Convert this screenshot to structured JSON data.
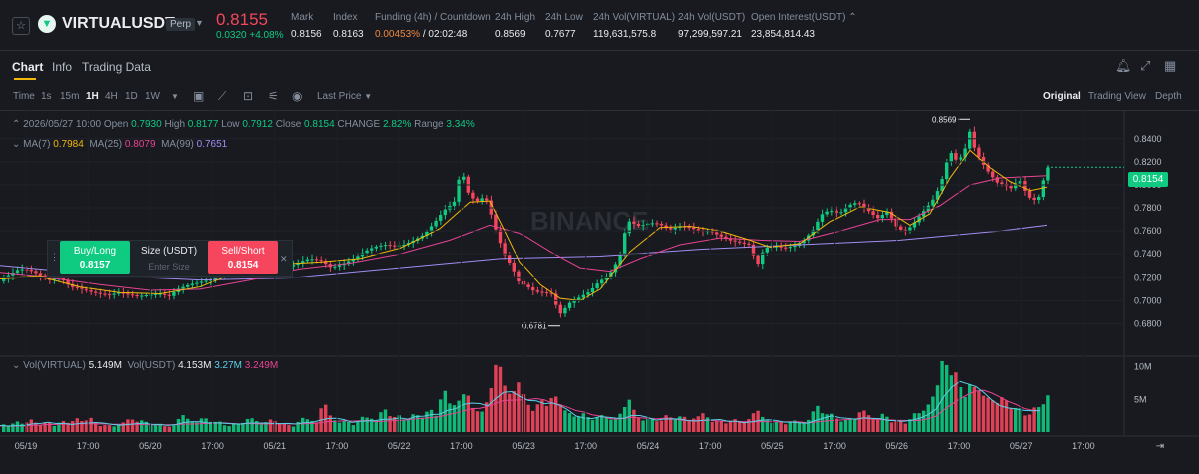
{
  "ticker": {
    "symbol": "VIRTUALUSDT",
    "perp_label": "Perp",
    "last_price": "0.8155",
    "change_abs": "0.0320",
    "change_pct": "+4.08%",
    "stats": [
      {
        "label": "Mark",
        "value": "0.8156",
        "color": "#eaecef"
      },
      {
        "label": "Index",
        "value": "0.8163",
        "color": "#eaecef"
      },
      {
        "label": "Funding (4h) / Countdown",
        "value": "0.00453%",
        "value2": "/ 02:02:48",
        "color": "#f0883e"
      },
      {
        "label": "24h High",
        "value": "0.8569",
        "color": "#eaecef"
      },
      {
        "label": "24h Low",
        "value": "0.7677",
        "color": "#eaecef"
      },
      {
        "label": "24h Vol(VIRTUAL)",
        "value": "119,631,575.8",
        "color": "#eaecef"
      },
      {
        "label": "24h Vol(USDT)",
        "value": "97,299,597.21",
        "color": "#eaecef"
      },
      {
        "label": "Open Interest(USDT)",
        "value": "23,854,814.43",
        "color": "#eaecef"
      }
    ]
  },
  "tabs": [
    "Chart",
    "Info",
    "Trading Data"
  ],
  "toolbar": {
    "time_label": "Time",
    "intervals": [
      "1s",
      "15m",
      "1H",
      "4H",
      "1D",
      "1W"
    ],
    "active_interval": "1H",
    "price_type": "Last Price",
    "views": [
      "Original",
      "Trading View",
      "Depth"
    ],
    "active_view": "Original"
  },
  "ohlc": {
    "date": "2026/05/27 10:00",
    "open_label": "Open",
    "open": "0.7930",
    "high_label": "High",
    "high": "0.8177",
    "low_label": "Low",
    "low": "0.7912",
    "close_label": "Close",
    "close": "0.8154",
    "change_label": "CHANGE",
    "change": "2.82%",
    "range_label": "Range",
    "range": "3.34%"
  },
  "ma": {
    "ma7_label": "MA(7)",
    "ma7": "0.7984",
    "ma25_label": "MA(25)",
    "ma25": "0.8079",
    "ma99_label": "MA(99)",
    "ma99": "0.7651"
  },
  "volume_info": {
    "vol_virtual_label": "Vol(VIRTUAL)",
    "vol_virtual": "5.149M",
    "vol_usdt_label": "Vol(USDT)",
    "vol_usdt": "4.153M",
    "vol_ma1": "3.27M",
    "vol_ma2": "3.249M"
  },
  "order": {
    "buy_label": "Buy/Long",
    "buy_price": "0.8157",
    "size_label": "Size (USDT)",
    "size_placeholder": "Enter Size",
    "sell_label": "Sell/Short",
    "sell_price": "0.8154"
  },
  "chart": {
    "current_price_tag": "0.8154",
    "high_marker": "0.8569",
    "low_marker": "0.6781",
    "watermark": "BINANCE"
  },
  "chart_data": {
    "type": "candlestick",
    "interval": "1H",
    "y_ticks": [
      "0.8400",
      "0.8200",
      "0.8000",
      "0.7800",
      "0.7600",
      "0.7400",
      "0.7200",
      "0.7000",
      "0.6800"
    ],
    "ylim": [
      0.664,
      0.858
    ],
    "volume_ticks": [
      "10M",
      "5M"
    ],
    "x_ticks": [
      "05/19",
      "17:00",
      "05/20",
      "17:00",
      "05/21",
      "17:00",
      "05/22",
      "17:00",
      "05/23",
      "17:00",
      "05/24",
      "17:00",
      "05/25",
      "17:00",
      "05/26",
      "17:00",
      "05/27",
      "17:00"
    ],
    "series": [
      {
        "name": "MA(7)",
        "color": "#f0b90b"
      },
      {
        "name": "MA(25)",
        "color": "#e84393"
      },
      {
        "name": "MA(99)",
        "color": "#a38cf2"
      }
    ],
    "price_path": [
      [
        0,
        0.717
      ],
      [
        10,
        0.722
      ],
      [
        20,
        0.727
      ],
      [
        30,
        0.726
      ],
      [
        40,
        0.722
      ],
      [
        50,
        0.718
      ],
      [
        60,
        0.721
      ],
      [
        66,
        0.716
      ],
      [
        72,
        0.712
      ],
      [
        80,
        0.711
      ],
      [
        90,
        0.708
      ],
      [
        100,
        0.706
      ],
      [
        110,
        0.705
      ],
      [
        120,
        0.707
      ],
      [
        130,
        0.705
      ],
      [
        140,
        0.704
      ],
      [
        150,
        0.705
      ],
      [
        160,
        0.706
      ],
      [
        170,
        0.704
      ],
      [
        178,
        0.71
      ],
      [
        190,
        0.714
      ],
      [
        200,
        0.716
      ],
      [
        210,
        0.718
      ],
      [
        220,
        0.722
      ],
      [
        230,
        0.726
      ],
      [
        240,
        0.73
      ],
      [
        255,
        0.733
      ],
      [
        265,
        0.734
      ],
      [
        275,
        0.733
      ],
      [
        285,
        0.731
      ],
      [
        290,
        0.729
      ],
      [
        300,
        0.733
      ],
      [
        310,
        0.736
      ],
      [
        322,
        0.734
      ],
      [
        332,
        0.728
      ],
      [
        345,
        0.732
      ],
      [
        355,
        0.736
      ],
      [
        365,
        0.742
      ],
      [
        375,
        0.746
      ],
      [
        385,
        0.748
      ],
      [
        395,
        0.747
      ],
      [
        405,
        0.748
      ],
      [
        415,
        0.752
      ],
      [
        425,
        0.757
      ],
      [
        435,
        0.767
      ],
      [
        445,
        0.778
      ],
      [
        455,
        0.785
      ],
      [
        462,
        0.814
      ],
      [
        470,
        0.79
      ],
      [
        478,
        0.786
      ],
      [
        486,
        0.79
      ],
      [
        492,
        0.774
      ],
      [
        498,
        0.757
      ],
      [
        505,
        0.74
      ],
      [
        512,
        0.73
      ],
      [
        520,
        0.716
      ],
      [
        528,
        0.712
      ],
      [
        535,
        0.708
      ],
      [
        545,
        0.707
      ],
      [
        552,
        0.706
      ],
      [
        560,
        0.688
      ],
      [
        570,
        0.698
      ],
      [
        580,
        0.703
      ],
      [
        590,
        0.708
      ],
      [
        600,
        0.717
      ],
      [
        610,
        0.722
      ],
      [
        620,
        0.737
      ],
      [
        628,
        0.769
      ],
      [
        640,
        0.764
      ],
      [
        650,
        0.767
      ],
      [
        660,
        0.766
      ],
      [
        670,
        0.761
      ],
      [
        680,
        0.764
      ],
      [
        690,
        0.763
      ],
      [
        700,
        0.76
      ],
      [
        710,
        0.76
      ],
      [
        720,
        0.756
      ],
      [
        730,
        0.752
      ],
      [
        740,
        0.75
      ],
      [
        750,
        0.748
      ],
      [
        758,
        0.73
      ],
      [
        765,
        0.745
      ],
      [
        775,
        0.747
      ],
      [
        785,
        0.745
      ],
      [
        795,
        0.747
      ],
      [
        805,
        0.752
      ],
      [
        815,
        0.762
      ],
      [
        822,
        0.774
      ],
      [
        830,
        0.778
      ],
      [
        840,
        0.775
      ],
      [
        848,
        0.782
      ],
      [
        858,
        0.785
      ],
      [
        868,
        0.778
      ],
      [
        878,
        0.771
      ],
      [
        888,
        0.777
      ],
      [
        898,
        0.762
      ],
      [
        905,
        0.76
      ],
      [
        912,
        0.764
      ],
      [
        920,
        0.773
      ],
      [
        928,
        0.781
      ],
      [
        936,
        0.79
      ],
      [
        944,
        0.808
      ],
      [
        950,
        0.83
      ],
      [
        958,
        0.82
      ],
      [
        965,
        0.829
      ],
      [
        970,
        0.847
      ],
      [
        975,
        0.832
      ],
      [
        982,
        0.82
      ],
      [
        990,
        0.81
      ],
      [
        998,
        0.802
      ],
      [
        1005,
        0.8
      ],
      [
        1012,
        0.797
      ],
      [
        1020,
        0.805
      ],
      [
        1027,
        0.792
      ],
      [
        1033,
        0.786
      ],
      [
        1040,
        0.79
      ],
      [
        1047,
        0.815
      ]
    ],
    "ma7": [
      [
        0,
        0.719
      ],
      [
        40,
        0.721
      ],
      [
        80,
        0.712
      ],
      [
        120,
        0.707
      ],
      [
        160,
        0.706
      ],
      [
        200,
        0.712
      ],
      [
        240,
        0.726
      ],
      [
        280,
        0.731
      ],
      [
        320,
        0.733
      ],
      [
        360,
        0.736
      ],
      [
        400,
        0.745
      ],
      [
        440,
        0.762
      ],
      [
        470,
        0.785
      ],
      [
        490,
        0.786
      ],
      [
        505,
        0.76
      ],
      [
        520,
        0.733
      ],
      [
        540,
        0.714
      ],
      [
        560,
        0.702
      ],
      [
        580,
        0.7
      ],
      [
        600,
        0.71
      ],
      [
        630,
        0.742
      ],
      [
        660,
        0.763
      ],
      [
        690,
        0.764
      ],
      [
        720,
        0.76
      ],
      [
        750,
        0.752
      ],
      [
        770,
        0.746
      ],
      [
        800,
        0.749
      ],
      [
        830,
        0.768
      ],
      [
        860,
        0.781
      ],
      [
        890,
        0.776
      ],
      [
        910,
        0.765
      ],
      [
        930,
        0.775
      ],
      [
        950,
        0.806
      ],
      [
        970,
        0.83
      ],
      [
        990,
        0.815
      ],
      [
        1010,
        0.803
      ],
      [
        1030,
        0.795
      ],
      [
        1047,
        0.798
      ]
    ],
    "ma25": [
      [
        0,
        0.724
      ],
      [
        50,
        0.72
      ],
      [
        100,
        0.714
      ],
      [
        150,
        0.709
      ],
      [
        200,
        0.71
      ],
      [
        250,
        0.718
      ],
      [
        300,
        0.727
      ],
      [
        350,
        0.732
      ],
      [
        400,
        0.74
      ],
      [
        450,
        0.752
      ],
      [
        490,
        0.765
      ],
      [
        520,
        0.758
      ],
      [
        550,
        0.742
      ],
      [
        580,
        0.728
      ],
      [
        610,
        0.725
      ],
      [
        640,
        0.736
      ],
      [
        680,
        0.748
      ],
      [
        720,
        0.754
      ],
      [
        760,
        0.752
      ],
      [
        800,
        0.751
      ],
      [
        840,
        0.76
      ],
      [
        880,
        0.77
      ],
      [
        910,
        0.77
      ],
      [
        940,
        0.782
      ],
      [
        970,
        0.8
      ],
      [
        1000,
        0.806
      ],
      [
        1047,
        0.808
      ]
    ],
    "ma99": [
      [
        0,
        0.73
      ],
      [
        100,
        0.722
      ],
      [
        200,
        0.718
      ],
      [
        300,
        0.72
      ],
      [
        400,
        0.728
      ],
      [
        500,
        0.736
      ],
      [
        600,
        0.738
      ],
      [
        700,
        0.744
      ],
      [
        800,
        0.748
      ],
      [
        900,
        0.752
      ],
      [
        1000,
        0.76
      ],
      [
        1047,
        0.765
      ]
    ],
    "volume_M": [
      [
        0,
        1.1
      ],
      [
        8,
        0.8
      ],
      [
        15,
        1.4
      ],
      [
        22,
        1.0
      ],
      [
        30,
        1.9
      ],
      [
        38,
        1.2
      ],
      [
        45,
        2.2
      ],
      [
        52,
        0.9
      ],
      [
        60,
        1.6
      ],
      [
        68,
        1.1
      ],
      [
        75,
        1.8
      ],
      [
        82,
        1.3
      ],
      [
        90,
        2.1
      ],
      [
        98,
        1.0
      ],
      [
        105,
        1.5
      ],
      [
        112,
        0.9
      ],
      [
        120,
        1.2
      ],
      [
        128,
        1.8
      ],
      [
        135,
        1.3
      ],
      [
        142,
        1.6
      ],
      [
        150,
        0.9
      ],
      [
        158,
        1.4
      ],
      [
        165,
        1.0
      ],
      [
        172,
        1.1
      ],
      [
        180,
        2.6
      ],
      [
        188,
        1.5
      ],
      [
        195,
        1.2
      ],
      [
        202,
        2.0
      ],
      [
        210,
        1.3
      ],
      [
        218,
        1.7
      ],
      [
        225,
        1.0
      ],
      [
        232,
        1.6
      ],
      [
        240,
        1.2
      ],
      [
        248,
        2.0
      ],
      [
        255,
        1.4
      ],
      [
        262,
        1.1
      ],
      [
        270,
        1.8
      ],
      [
        278,
        1.3
      ],
      [
        285,
        1.5
      ],
      [
        292,
        1.0
      ],
      [
        300,
        2.2
      ],
      [
        308,
        1.6
      ],
      [
        315,
        1.2
      ],
      [
        322,
        4.1
      ],
      [
        330,
        1.8
      ],
      [
        338,
        1.4
      ],
      [
        345,
        2.1
      ],
      [
        352,
        1.3
      ],
      [
        360,
        2.4
      ],
      [
        368,
        1.9
      ],
      [
        375,
        1.5
      ],
      [
        382,
        3.2
      ],
      [
        390,
        1.8
      ],
      [
        398,
        2.5
      ],
      [
        405,
        1.7
      ],
      [
        412,
        3.8
      ],
      [
        420,
        2.2
      ],
      [
        428,
        3.4
      ],
      [
        435,
        2.0
      ],
      [
        442,
        5.8
      ],
      [
        450,
        3.1
      ],
      [
        458,
        4.6
      ],
      [
        465,
        6.8
      ],
      [
        472,
        4.4
      ],
      [
        480,
        3.3
      ],
      [
        488,
        5.2
      ],
      [
        496,
        10.0
      ],
      [
        503,
        6.0
      ],
      [
        510,
        4.5
      ],
      [
        517,
        7.0
      ],
      [
        524,
        5.1
      ],
      [
        530,
        3.6
      ],
      [
        538,
        6.2
      ],
      [
        545,
        4.0
      ],
      [
        552,
        5.4
      ],
      [
        560,
        3.0
      ],
      [
        568,
        2.4
      ],
      [
        575,
        1.8
      ],
      [
        582,
        2.8
      ],
      [
        590,
        2.0
      ],
      [
        598,
        3.4
      ],
      [
        605,
        2.2
      ],
      [
        612,
        1.6
      ],
      [
        620,
        2.6
      ],
      [
        628,
        4.2
      ],
      [
        635,
        2.0
      ],
      [
        642,
        1.6
      ],
      [
        650,
        2.4
      ],
      [
        658,
        1.9
      ],
      [
        665,
        2.9
      ],
      [
        672,
        1.7
      ],
      [
        680,
        2.2
      ],
      [
        688,
        1.5
      ],
      [
        695,
        1.9
      ],
      [
        702,
        2.7
      ],
      [
        710,
        1.6
      ],
      [
        718,
        2.3
      ],
      [
        725,
        1.4
      ],
      [
        732,
        2.0
      ],
      [
        740,
        1.2
      ],
      [
        748,
        1.7
      ],
      [
        755,
        3.0
      ],
      [
        762,
        1.9
      ],
      [
        770,
        1.4
      ],
      [
        778,
        2.1
      ],
      [
        785,
        1.3
      ],
      [
        792,
        1.8
      ],
      [
        800,
        1.2
      ],
      [
        808,
        1.6
      ],
      [
        815,
        3.6
      ],
      [
        822,
        2.3
      ],
      [
        830,
        2.8
      ],
      [
        838,
        1.9
      ],
      [
        845,
        2.4
      ],
      [
        852,
        1.8
      ],
      [
        860,
        3.2
      ],
      [
        868,
        2.0
      ],
      [
        875,
        1.6
      ],
      [
        882,
        2.6
      ],
      [
        890,
        1.4
      ],
      [
        898,
        2.0
      ],
      [
        905,
        1.6
      ],
      [
        912,
        3.0
      ],
      [
        920,
        2.6
      ],
      [
        928,
        3.8
      ],
      [
        935,
        5.4
      ],
      [
        942,
        10.4
      ],
      [
        948,
        7.8
      ],
      [
        955,
        9.6
      ],
      [
        962,
        6.4
      ],
      [
        968,
        8.8
      ],
      [
        975,
        6.6
      ],
      [
        982,
        5.0
      ],
      [
        988,
        4.4
      ],
      [
        995,
        3.6
      ],
      [
        1002,
        4.8
      ],
      [
        1010,
        3.2
      ],
      [
        1018,
        4.1
      ],
      [
        1025,
        2.8
      ],
      [
        1032,
        4.2
      ],
      [
        1040,
        3.6
      ],
      [
        1047,
        5.1
      ]
    ]
  }
}
